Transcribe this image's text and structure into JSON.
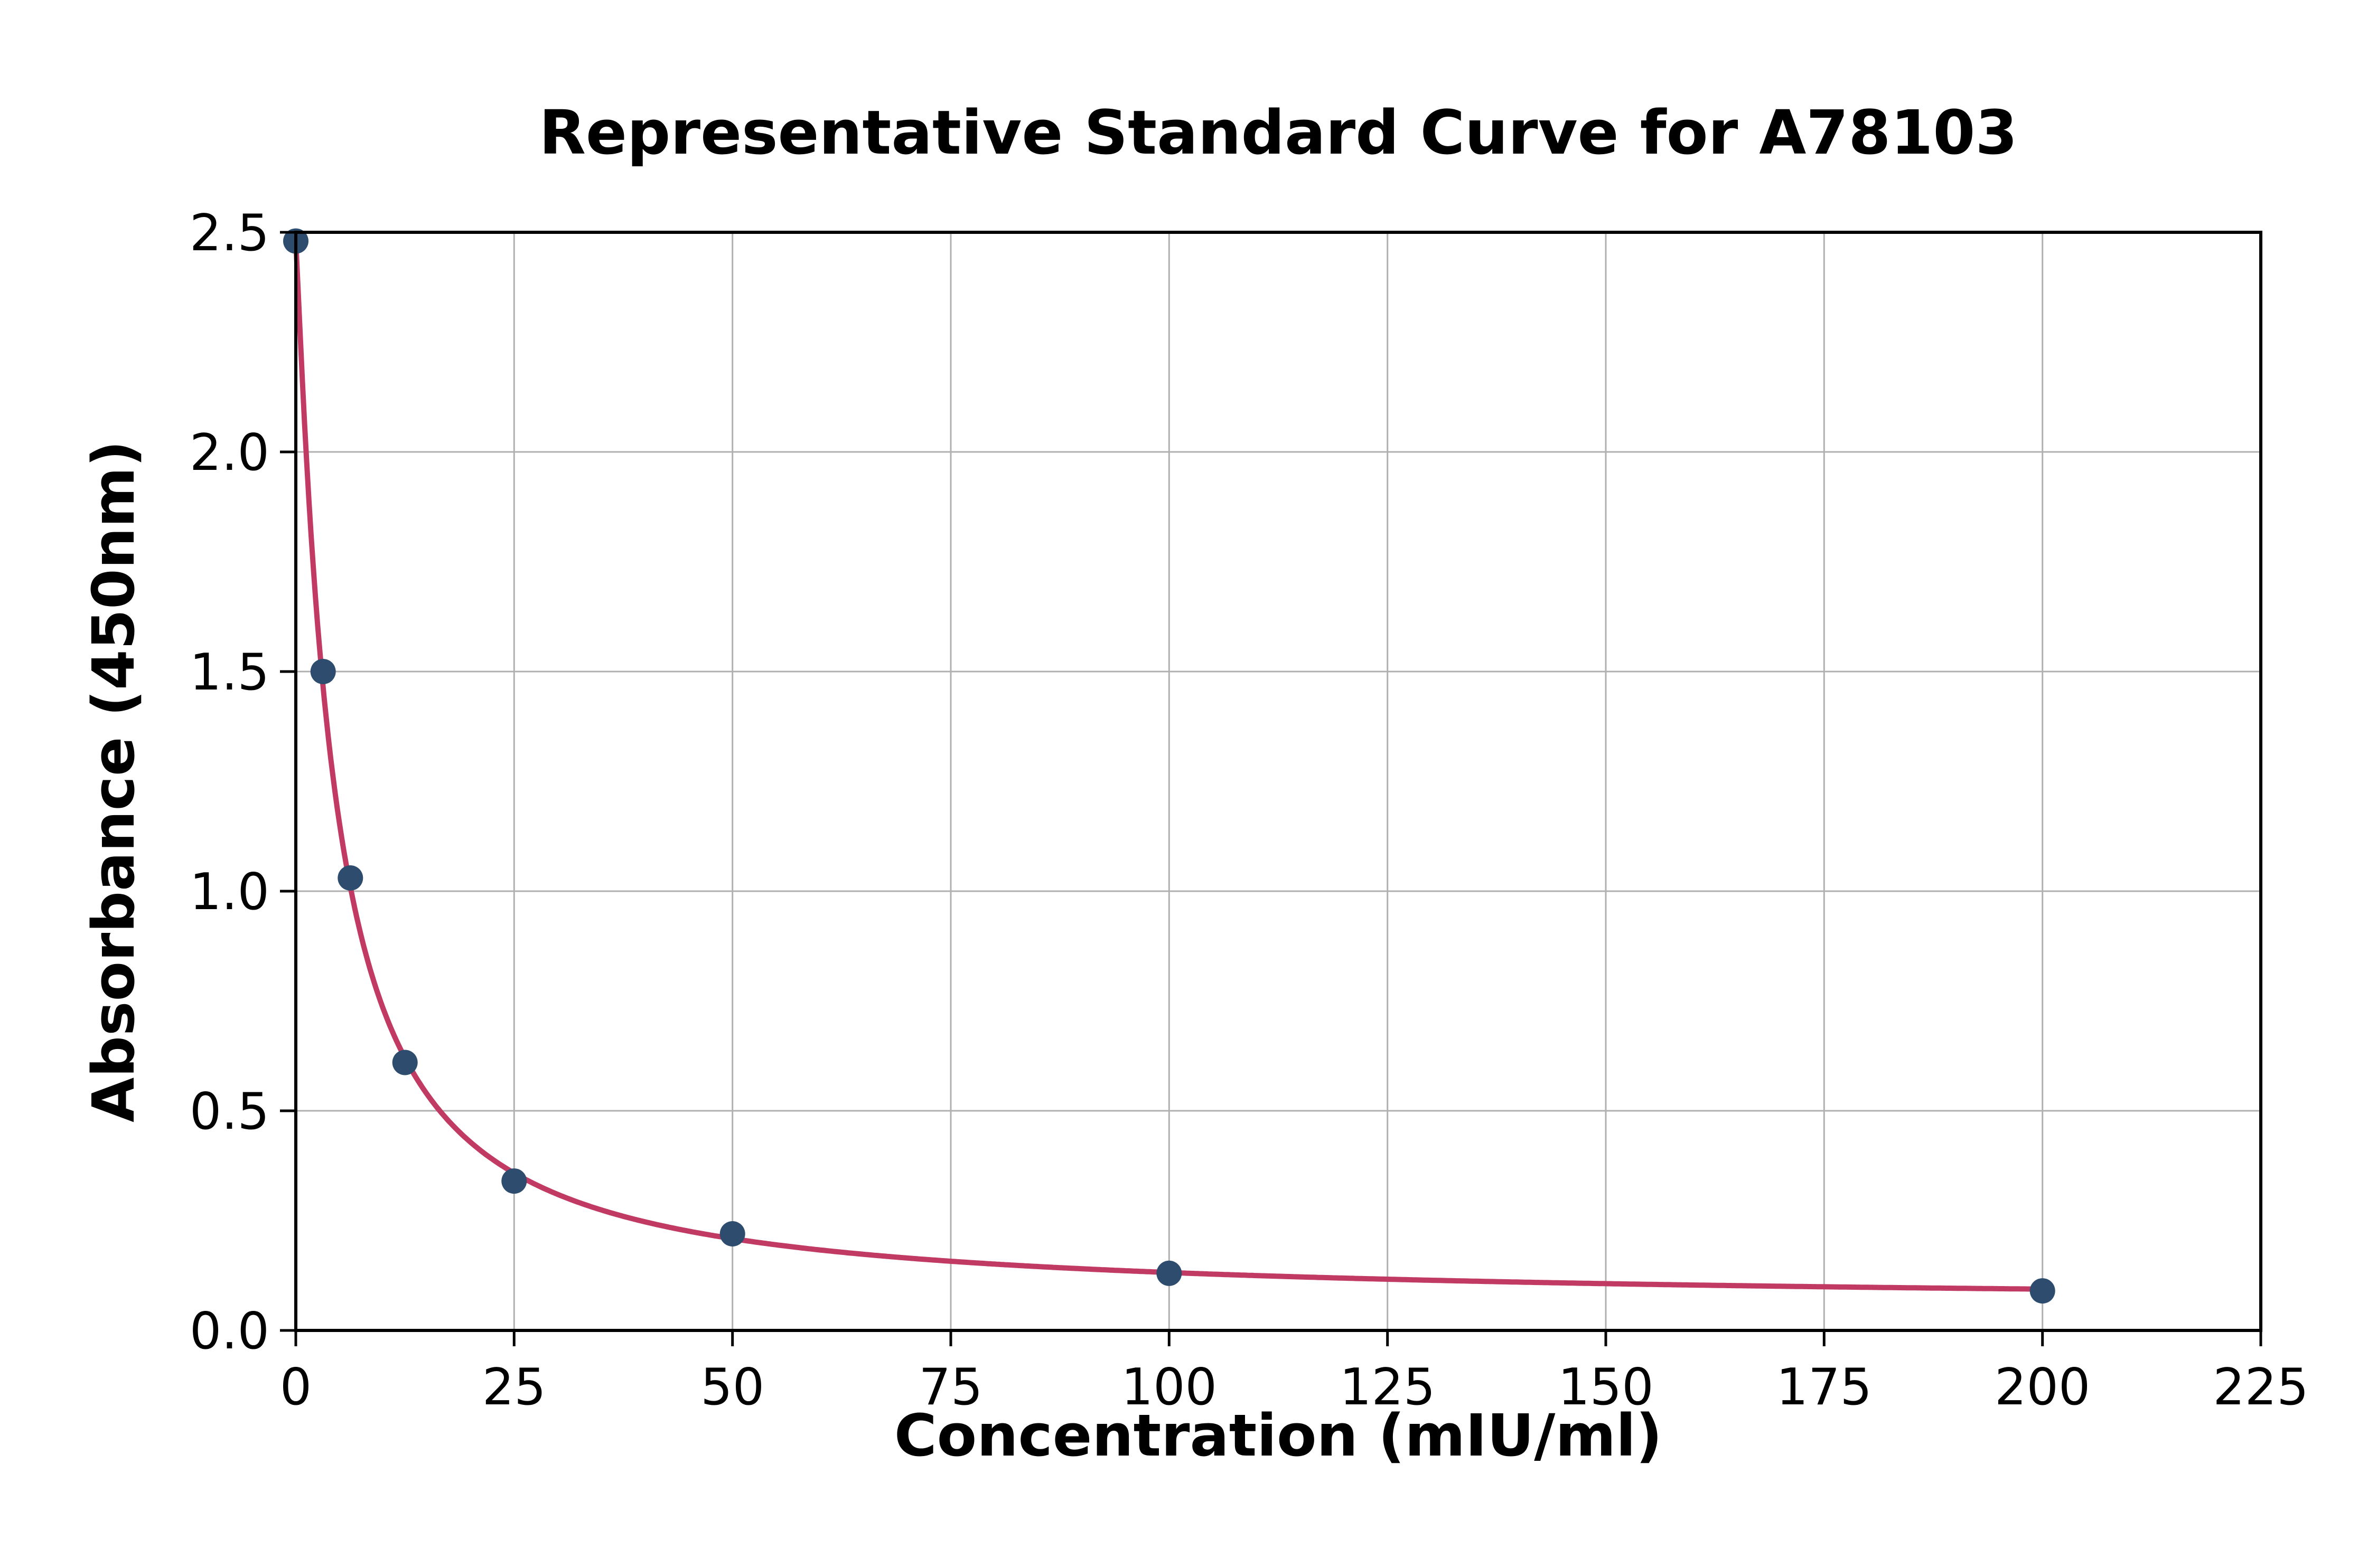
{
  "chart_data": {
    "type": "scatter",
    "title": "Representative Standard Curve for A78103",
    "xlabel": "Concentration (mIU/ml)",
    "ylabel": "Absorbance (450nm)",
    "points": [
      {
        "x": 0,
        "y": 2.48
      },
      {
        "x": 3.125,
        "y": 1.5
      },
      {
        "x": 6.25,
        "y": 1.03
      },
      {
        "x": 12.5,
        "y": 0.61
      },
      {
        "x": 25,
        "y": 0.34
      },
      {
        "x": 50,
        "y": 0.22
      },
      {
        "x": 100,
        "y": 0.13
      },
      {
        "x": 200,
        "y": 0.09
      }
    ],
    "xlim": [
      0,
      225
    ],
    "ylim": [
      0,
      2.5
    ],
    "xticks": [
      0,
      25,
      50,
      75,
      100,
      125,
      150,
      175,
      200,
      225
    ],
    "yticks": [
      0.0,
      0.5,
      1.0,
      1.5,
      2.0,
      2.5
    ],
    "grid": true,
    "legend": "none",
    "marker_color": "#2e4d6e",
    "curve_color": "#c03a63",
    "fit": {
      "model": "4PL",
      "a": 2.48,
      "b": 1.1,
      "c": 4.2,
      "d": 0.06,
      "x_start": 0,
      "x_end": 200
    }
  }
}
